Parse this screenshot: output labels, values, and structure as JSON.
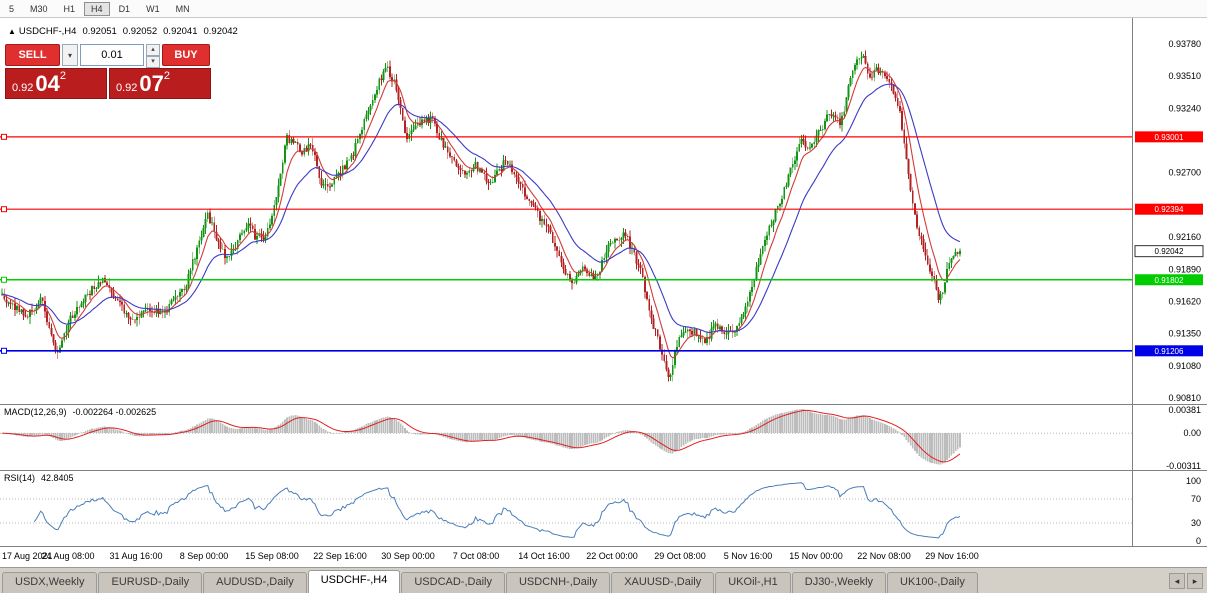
{
  "toolbar": {
    "items": [
      "5",
      "M30",
      "H1",
      "H4",
      "D1",
      "W1",
      "MN"
    ],
    "active_index": 3
  },
  "icons": {
    "symbol_direction": "▲",
    "dropdown": "▾",
    "step_up": "▴",
    "step_down": "▾",
    "tab_scroll_left": "◂",
    "tab_scroll_right": "▸"
  },
  "chart": {
    "symbol_line": {
      "symbol": "USDCHF-,H4",
      "open": "0.92051",
      "high": "0.92052",
      "low": "0.92041",
      "close": "0.92042"
    },
    "trade_panel": {
      "sell_label": "SELL",
      "buy_label": "BUY",
      "volume": "0.01",
      "bid": {
        "prefix": "0.92",
        "big": "04",
        "sup": "2"
      },
      "ask": {
        "prefix": "0.92",
        "big": "07",
        "sup": "2"
      }
    },
    "colors": {
      "up": "#149414",
      "down": "#B22222",
      "ma_fast": "#D23B3B",
      "ma_slow": "#3A3AC8",
      "macd_hist": "#BDBDBD",
      "macd_signal": "#E02020",
      "rsi": "#4A7EBB",
      "line_red": "#FF0000",
      "line_green": "#00CC00",
      "line_blue": "#0000E6"
    },
    "axis_prices": [
      "0.93780",
      "0.93510",
      "0.93240",
      "0.92700",
      "0.92160",
      "0.91890",
      "0.91620",
      "0.91350",
      "0.91080",
      "0.90810"
    ],
    "hlines": [
      {
        "price": 0.93001,
        "label": "0.93001",
        "color": "#FF0000"
      },
      {
        "price": 0.92394,
        "label": "0.92394",
        "color": "#FF0000"
      },
      {
        "price": 0.91802,
        "label": "0.91802",
        "color": "#00CC00"
      },
      {
        "price": 0.91206,
        "label": "0.91206",
        "color": "#0000E6"
      }
    ],
    "current_price": {
      "value": 0.92042,
      "label": "0.92042"
    }
  },
  "macd": {
    "title": "MACD(12,26,9)",
    "values": "-0.002264 -0.002625",
    "axis": [
      "0.00381",
      "0.00",
      "-0.00311"
    ]
  },
  "rsi": {
    "title": "RSI(14)",
    "value": "42.8405",
    "axis": [
      "100",
      "70",
      "30",
      "0"
    ],
    "levels": [
      70,
      30
    ]
  },
  "time_axis": {
    "labels": [
      "17 Aug 2021",
      "24 Aug 08:00",
      "31 Aug 16:00",
      "8 Sep 00:00",
      "15 Sep 08:00",
      "22 Sep 16:00",
      "30 Sep 00:00",
      "7 Oct 08:00",
      "14 Oct 16:00",
      "22 Oct 00:00",
      "29 Oct 08:00",
      "5 Nov 16:00",
      "15 Nov 00:00",
      "22 Nov 08:00",
      "29 Nov 16:00"
    ]
  },
  "tabs": {
    "items": [
      "USDX,Weekly",
      "EURUSD-,Daily",
      "AUDUSD-,Daily",
      "USDCHF-,H4",
      "USDCAD-,Daily",
      "USDCNH-,Daily",
      "XAUUSD-,Daily",
      "UKOil-,H1",
      "DJ30-,Weekly",
      "UK100-,Daily"
    ],
    "active_index": 3
  },
  "chart_data": {
    "type": "candlestick",
    "symbol": "USDCHF",
    "timeframe": "H4",
    "last_close": 0.92042,
    "y_ticks": [
      0.9081,
      0.9108,
      0.9135,
      0.9162,
      0.9189,
      0.9216,
      0.927,
      0.9324,
      0.9351,
      0.9378
    ],
    "horizontal_lines": [
      {
        "price": 0.93001,
        "color": "red"
      },
      {
        "price": 0.92394,
        "color": "red"
      },
      {
        "price": 0.91802,
        "color": "green"
      },
      {
        "price": 0.91206,
        "color": "blue"
      }
    ],
    "indicators": [
      {
        "name": "MACD",
        "params": [
          12,
          26,
          9
        ],
        "last_main": -0.002264,
        "last_signal": -0.002625,
        "range": [
          -0.00311,
          0.00381
        ]
      },
      {
        "name": "RSI",
        "params": [
          14
        ],
        "last_value": 42.8405,
        "range": [
          0,
          100
        ]
      }
    ],
    "price_path": [
      [
        0.0,
        0.9168
      ],
      [
        0.01,
        0.916
      ],
      [
        0.026,
        0.9148
      ],
      [
        0.042,
        0.9165
      ],
      [
        0.057,
        0.9115
      ],
      [
        0.073,
        0.915
      ],
      [
        0.089,
        0.9168
      ],
      [
        0.104,
        0.918
      ],
      [
        0.12,
        0.9162
      ],
      [
        0.135,
        0.9145
      ],
      [
        0.151,
        0.9158
      ],
      [
        0.167,
        0.915
      ],
      [
        0.18,
        0.9165
      ],
      [
        0.193,
        0.9178
      ],
      [
        0.205,
        0.921
      ],
      [
        0.214,
        0.9237
      ],
      [
        0.224,
        0.9215
      ],
      [
        0.234,
        0.9196
      ],
      [
        0.245,
        0.921
      ],
      [
        0.255,
        0.9227
      ],
      [
        0.266,
        0.9215
      ],
      [
        0.276,
        0.9218
      ],
      [
        0.287,
        0.925
      ],
      [
        0.297,
        0.93
      ],
      [
        0.313,
        0.9287
      ],
      [
        0.323,
        0.9296
      ],
      [
        0.333,
        0.9257
      ],
      [
        0.344,
        0.9262
      ],
      [
        0.365,
        0.9282
      ],
      [
        0.385,
        0.933
      ],
      [
        0.401,
        0.936
      ],
      [
        0.411,
        0.9342
      ],
      [
        0.422,
        0.93
      ],
      [
        0.432,
        0.931
      ],
      [
        0.448,
        0.9316
      ],
      [
        0.464,
        0.9287
      ],
      [
        0.479,
        0.927
      ],
      [
        0.495,
        0.9276
      ],
      [
        0.51,
        0.9262
      ],
      [
        0.526,
        0.928
      ],
      [
        0.536,
        0.927
      ],
      [
        0.552,
        0.9243
      ],
      [
        0.568,
        0.9226
      ],
      [
        0.583,
        0.92
      ],
      [
        0.594,
        0.9174
      ],
      [
        0.604,
        0.919
      ],
      [
        0.62,
        0.9182
      ],
      [
        0.635,
        0.9212
      ],
      [
        0.651,
        0.9218
      ],
      [
        0.667,
        0.9186
      ],
      [
        0.677,
        0.915
      ],
      [
        0.688,
        0.912
      ],
      [
        0.696,
        0.9096
      ],
      [
        0.706,
        0.913
      ],
      [
        0.719,
        0.9138
      ],
      [
        0.734,
        0.9128
      ],
      [
        0.745,
        0.9142
      ],
      [
        0.755,
        0.9132
      ],
      [
        0.766,
        0.914
      ],
      [
        0.776,
        0.9155
      ],
      [
        0.786,
        0.9185
      ],
      [
        0.797,
        0.9215
      ],
      [
        0.807,
        0.9235
      ],
      [
        0.823,
        0.927
      ],
      [
        0.833,
        0.9298
      ],
      [
        0.844,
        0.9288
      ],
      [
        0.854,
        0.9305
      ],
      [
        0.865,
        0.9322
      ],
      [
        0.875,
        0.931
      ],
      [
        0.885,
        0.9345
      ],
      [
        0.896,
        0.9372
      ],
      [
        0.906,
        0.935
      ],
      [
        0.917,
        0.9358
      ],
      [
        0.927,
        0.9345
      ],
      [
        0.938,
        0.9318
      ],
      [
        0.948,
        0.926
      ],
      [
        0.958,
        0.9215
      ],
      [
        0.969,
        0.9188
      ],
      [
        0.979,
        0.9163
      ],
      [
        0.99,
        0.9198
      ],
      [
        1.0,
        0.92042
      ]
    ]
  }
}
